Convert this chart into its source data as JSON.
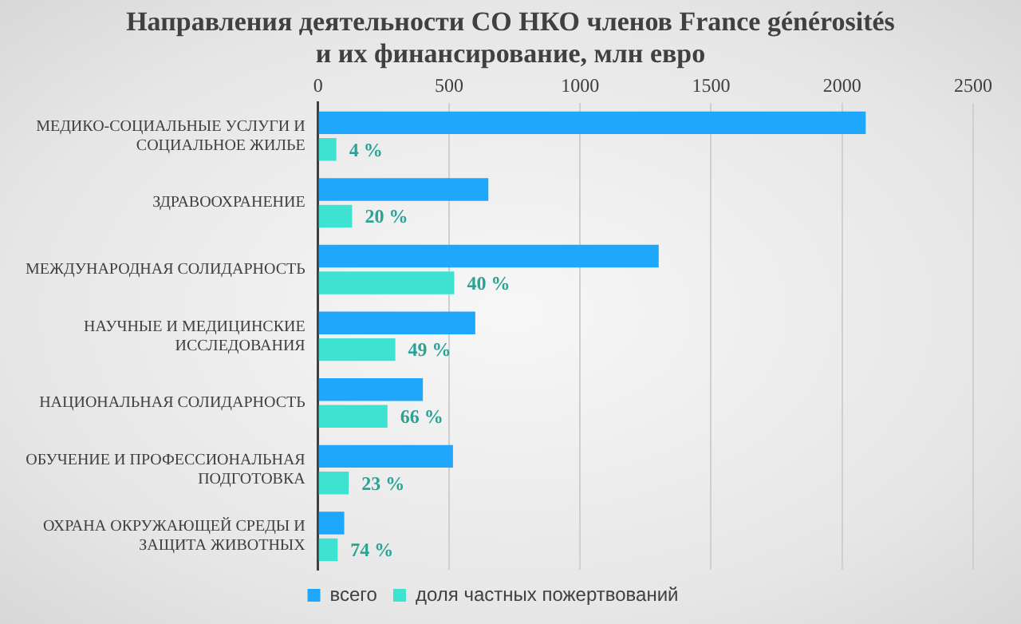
{
  "chart_data": {
    "type": "bar",
    "orientation": "horizontal",
    "title": "Направления деятельности СО НКО членов France générosités\nи их финансирование, млн евро",
    "categories": [
      "МЕДИКО-СОЦИАЛЬНЫЕ УСЛУГИ И СОЦИАЛЬНОЕ ЖИЛЬЕ",
      "ЗДРАВООХРАНЕНИЕ",
      "МЕЖДУНАРОДНАЯ СОЛИДАРНОСТЬ",
      "НАУЧНЫЕ И МЕДИЦИНСКИЕ ИССЛЕДОВАНИЯ",
      "НАЦИОНАЛЬНАЯ СОЛИДАРНОСТЬ",
      "ОБУЧЕНИЕ И ПРОФЕССИОНАЛЬНАЯ ПОДГОТОВКА",
      "ОХРАНА ОКРУЖАЮЩЕЙ СРЕДЫ И ЗАЩИТА ЖИВОТНЫХ"
    ],
    "series": [
      {
        "name": "всего",
        "color": "#1fa7fb",
        "values": [
          2090,
          650,
          1300,
          600,
          400,
          515,
          100
        ]
      },
      {
        "name": "доля частных пожертвований",
        "color": "#3de3d0",
        "values": [
          70,
          130,
          520,
          295,
          265,
          117,
          75
        ]
      }
    ],
    "annotations": [
      {
        "text": "4 %",
        "x": 70,
        "y": "МЕДИКО-СОЦИАЛЬНЫЕ УСЛУГИ И СОЦИАЛЬНОЕ ЖИЛЬЕ"
      },
      {
        "text": "20 %",
        "x": 130,
        "y": "ЗДРАВООХРАНЕНИЕ"
      },
      {
        "text": "40 %",
        "x": 520,
        "y": "МЕЖДУНАРОДНАЯ СОЛИДАРНОСТЬ"
      },
      {
        "text": "49 %",
        "x": 295,
        "y": "НАУЧНЫЕ И МЕДИЦИНСКИЕ ИССЛЕДОВАНИЯ"
      },
      {
        "text": "66 %",
        "x": 265,
        "y": "НАЦИОНАЛЬНАЯ СОЛИДАРНОСТЬ"
      },
      {
        "text": "23 %",
        "x": 117,
        "y": "ОБУЧЕНИЕ И ПРОФЕССИОНАЛЬНАЯ ПОДГОТОВКА"
      },
      {
        "text": "74 %",
        "x": 75,
        "y": "ОХРАНА ОКРУЖАЮЩЕЙ СРЕДЫ И ЗАЩИТА ЖИВОТНЫХ"
      }
    ],
    "xlim": [
      0,
      2500
    ],
    "xticks": [
      0,
      500,
      1000,
      1500,
      2000,
      2500
    ],
    "grid": "x",
    "legend": "bottom"
  }
}
